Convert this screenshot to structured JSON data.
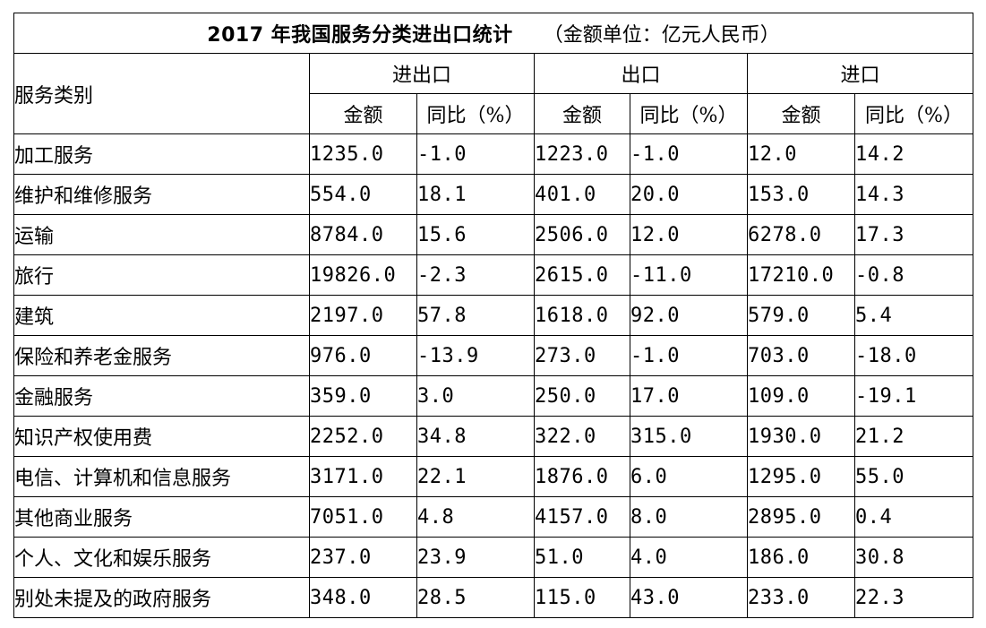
{
  "title": "2017 年我国服务分类进出口统计",
  "unit_note": "（金额单位：亿元人民币）",
  "headers": {
    "category": "服务类别",
    "groups": [
      "进出口",
      "出口",
      "进口"
    ],
    "amount": "金额",
    "yoy": "同比（%）"
  },
  "rows": [
    {
      "name": "加工服务",
      "values": [
        "1235.0",
        "-1.0",
        "1223.0",
        "-1.0",
        "12.0",
        "14.2"
      ]
    },
    {
      "name": "维护和维修服务",
      "values": [
        "554.0",
        "18.1",
        "401.0",
        "20.0",
        "153.0",
        "14.3"
      ]
    },
    {
      "name": "运输",
      "values": [
        "8784.0",
        "15.6",
        "2506.0",
        "12.0",
        "6278.0",
        "17.3"
      ]
    },
    {
      "name": "旅行",
      "values": [
        "19826.0",
        "-2.3",
        "2615.0",
        "-11.0",
        "17210.0",
        "-0.8"
      ]
    },
    {
      "name": "建筑",
      "values": [
        "2197.0",
        "57.8",
        "1618.0",
        "92.0",
        "579.0",
        "5.4"
      ]
    },
    {
      "name": "保险和养老金服务",
      "values": [
        "976.0",
        "-13.9",
        "273.0",
        "-1.0",
        "703.0",
        "-18.0"
      ]
    },
    {
      "name": "金融服务",
      "values": [
        "359.0",
        "3.0",
        "250.0",
        "17.0",
        "109.0",
        "-19.1"
      ]
    },
    {
      "name": "知识产权使用费",
      "values": [
        "2252.0",
        "34.8",
        "322.0",
        "315.0",
        "1930.0",
        "21.2"
      ]
    },
    {
      "name": "电信、计算机和信息服务",
      "values": [
        "3171.0",
        "22.1",
        "1876.0",
        "6.0",
        "1295.0",
        "55.0"
      ]
    },
    {
      "name": "其他商业服务",
      "values": [
        "7051.0",
        "4.8",
        "4157.0",
        "8.0",
        "2895.0",
        "0.4"
      ]
    },
    {
      "name": "个人、文化和娱乐服务",
      "values": [
        "237.0",
        "23.9",
        "51.0",
        "4.0",
        "186.0",
        "30.8"
      ]
    },
    {
      "name": "别处未提及的政府服务",
      "values": [
        "348.0",
        "28.5",
        "115.0",
        "43.0",
        "233.0",
        "22.3"
      ]
    }
  ]
}
